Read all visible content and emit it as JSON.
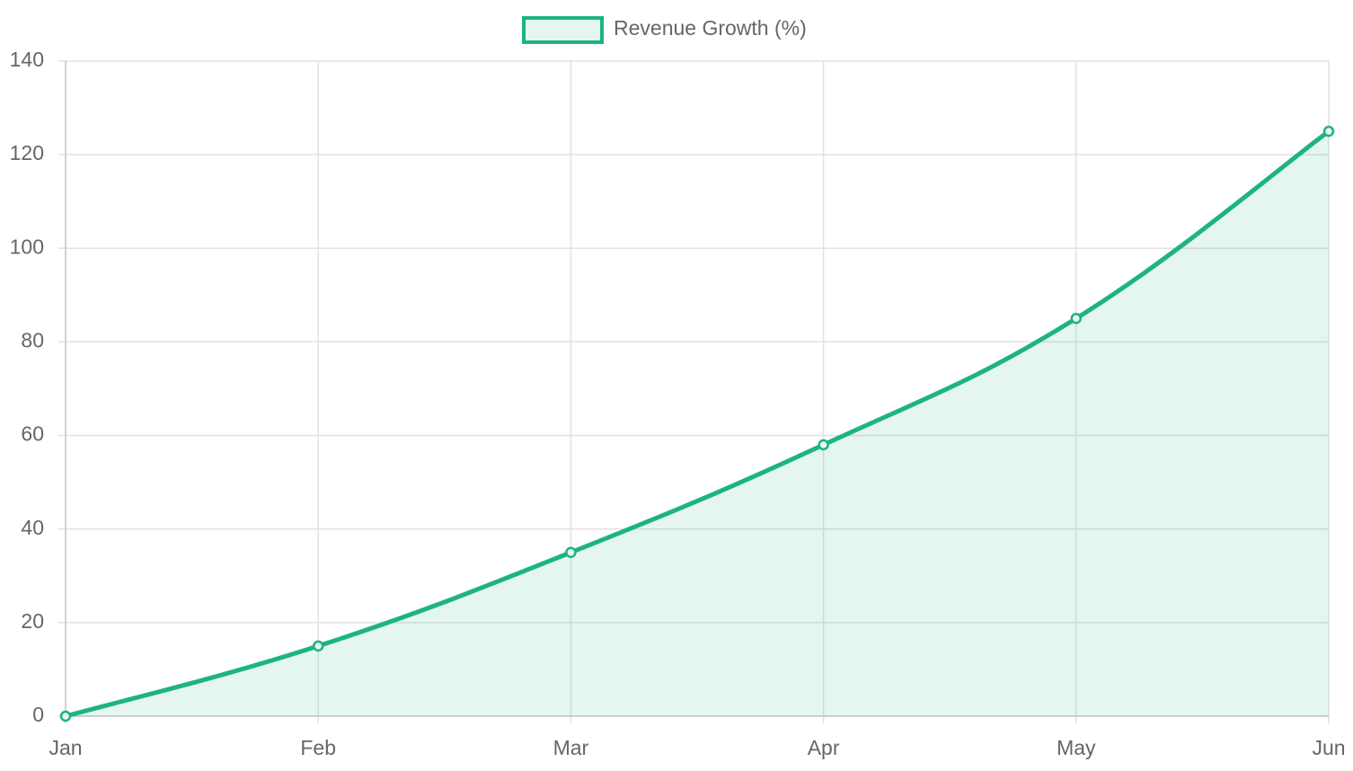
{
  "chart_data": {
    "type": "line",
    "categories": [
      "Jan",
      "Feb",
      "Mar",
      "Apr",
      "May",
      "Jun"
    ],
    "series": [
      {
        "name": "Revenue Growth (%)",
        "color": "#1db47f",
        "values": [
          0,
          15,
          35,
          58,
          85,
          125
        ]
      }
    ],
    "ylim": [
      0,
      140
    ],
    "yticks": [
      0,
      20,
      40,
      60,
      80,
      100,
      120,
      140
    ],
    "grid": true,
    "fill": true,
    "legend": "top"
  }
}
